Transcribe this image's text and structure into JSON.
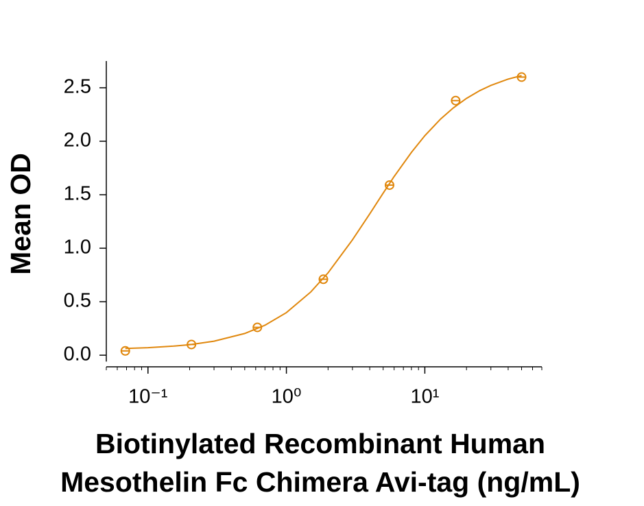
{
  "chart_data": {
    "type": "scatter",
    "ylabel": "Mean OD",
    "xlabel": [
      "Biotinylated Recombinant Human",
      "Mesothelin Fc Chimera Avi-tag (ng/mL)"
    ],
    "xscale": "log",
    "xlim": [
      0.05,
      70
    ],
    "xticks": [
      {
        "value": 0.1,
        "label": "10⁻¹"
      },
      {
        "value": 1,
        "label": "10⁰"
      },
      {
        "value": 10,
        "label": "10¹"
      }
    ],
    "xminorticks": [
      0.05,
      0.06,
      0.07,
      0.08,
      0.09,
      0.2,
      0.3,
      0.4,
      0.5,
      0.6,
      0.7,
      0.8,
      0.9,
      2,
      3,
      4,
      5,
      6,
      7,
      8,
      9,
      20,
      30,
      40,
      50,
      60,
      70
    ],
    "ylim": [
      -0.06,
      2.75
    ],
    "yticks": [
      {
        "value": 0,
        "label": "0.0"
      },
      0.5,
      {
        "value": 1,
        "label": "1.0"
      },
      1.5,
      {
        "value": 2,
        "label": "2.0"
      },
      2.5
    ],
    "color": "#e0870c",
    "series": [
      {
        "kind": "points",
        "x": [
          0.0686,
          0.206,
          0.617,
          1.85,
          5.56,
          16.7,
          50
        ],
        "values": [
          0.04,
          0.1,
          0.26,
          0.71,
          1.59,
          2.38,
          2.6
        ]
      },
      {
        "kind": "fit",
        "x": [
          0.0686,
          0.1,
          0.15,
          0.2,
          0.3,
          0.5,
          0.7,
          1,
          1.5,
          2,
          3,
          4,
          5,
          6,
          8,
          10,
          13,
          16,
          20,
          25,
          30,
          40,
          50
        ],
        "values": [
          0.063,
          0.07,
          0.084,
          0.098,
          0.131,
          0.203,
          0.28,
          0.398,
          0.591,
          0.77,
          1.078,
          1.321,
          1.515,
          1.67,
          1.896,
          2.052,
          2.208,
          2.31,
          2.401,
          2.474,
          2.522,
          2.581,
          2.614
        ]
      }
    ]
  }
}
